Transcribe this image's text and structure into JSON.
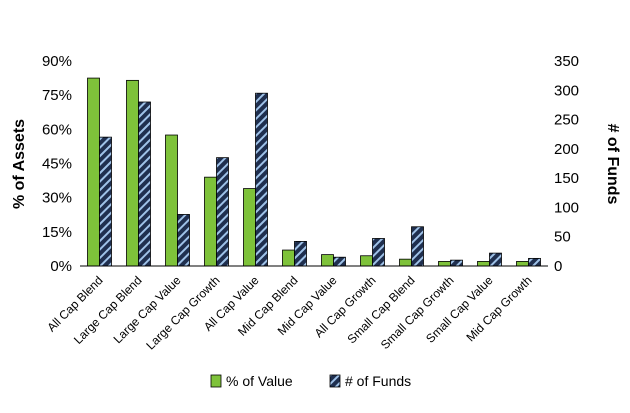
{
  "chart_data": {
    "type": "bar",
    "title": "",
    "xlabel": "",
    "ylabel": "% of Assets",
    "y2label": "# of Funds",
    "categories": [
      "All Cap Blend",
      "Large Cap Blend",
      "Large Cap Value",
      "Large Cap Growth",
      "All Cap Value",
      "Mid Cap Blend",
      "Mid Cap Value",
      "All Cap Growth",
      "Small Cap Blend",
      "Small Cap Growth",
      "Small Cap Value",
      "Mid Cap Growth"
    ],
    "series": [
      {
        "name": "% of Value",
        "axis": "left",
        "unit": "%",
        "color": "#7ec23a",
        "values": [
          82.5,
          81.5,
          57.5,
          39,
          34,
          7,
          5,
          4.5,
          3,
          2,
          2,
          2
        ]
      },
      {
        "name": "# of Funds",
        "axis": "right",
        "color": "#1f2f4f",
        "pattern": "light-blue diagonal hatch",
        "values": [
          220,
          280,
          88,
          185,
          295,
          42,
          15,
          47,
          67,
          10,
          22,
          13
        ]
      }
    ],
    "ylim": [
      0,
      90
    ],
    "yticks": [
      "0%",
      "15%",
      "30%",
      "45%",
      "60%",
      "75%",
      "90%"
    ],
    "y2lim": [
      0,
      350
    ],
    "y2ticks": [
      "0",
      "50",
      "100",
      "150",
      "200",
      "250",
      "300",
      "350"
    ],
    "legend": "bottom",
    "grid": false
  }
}
